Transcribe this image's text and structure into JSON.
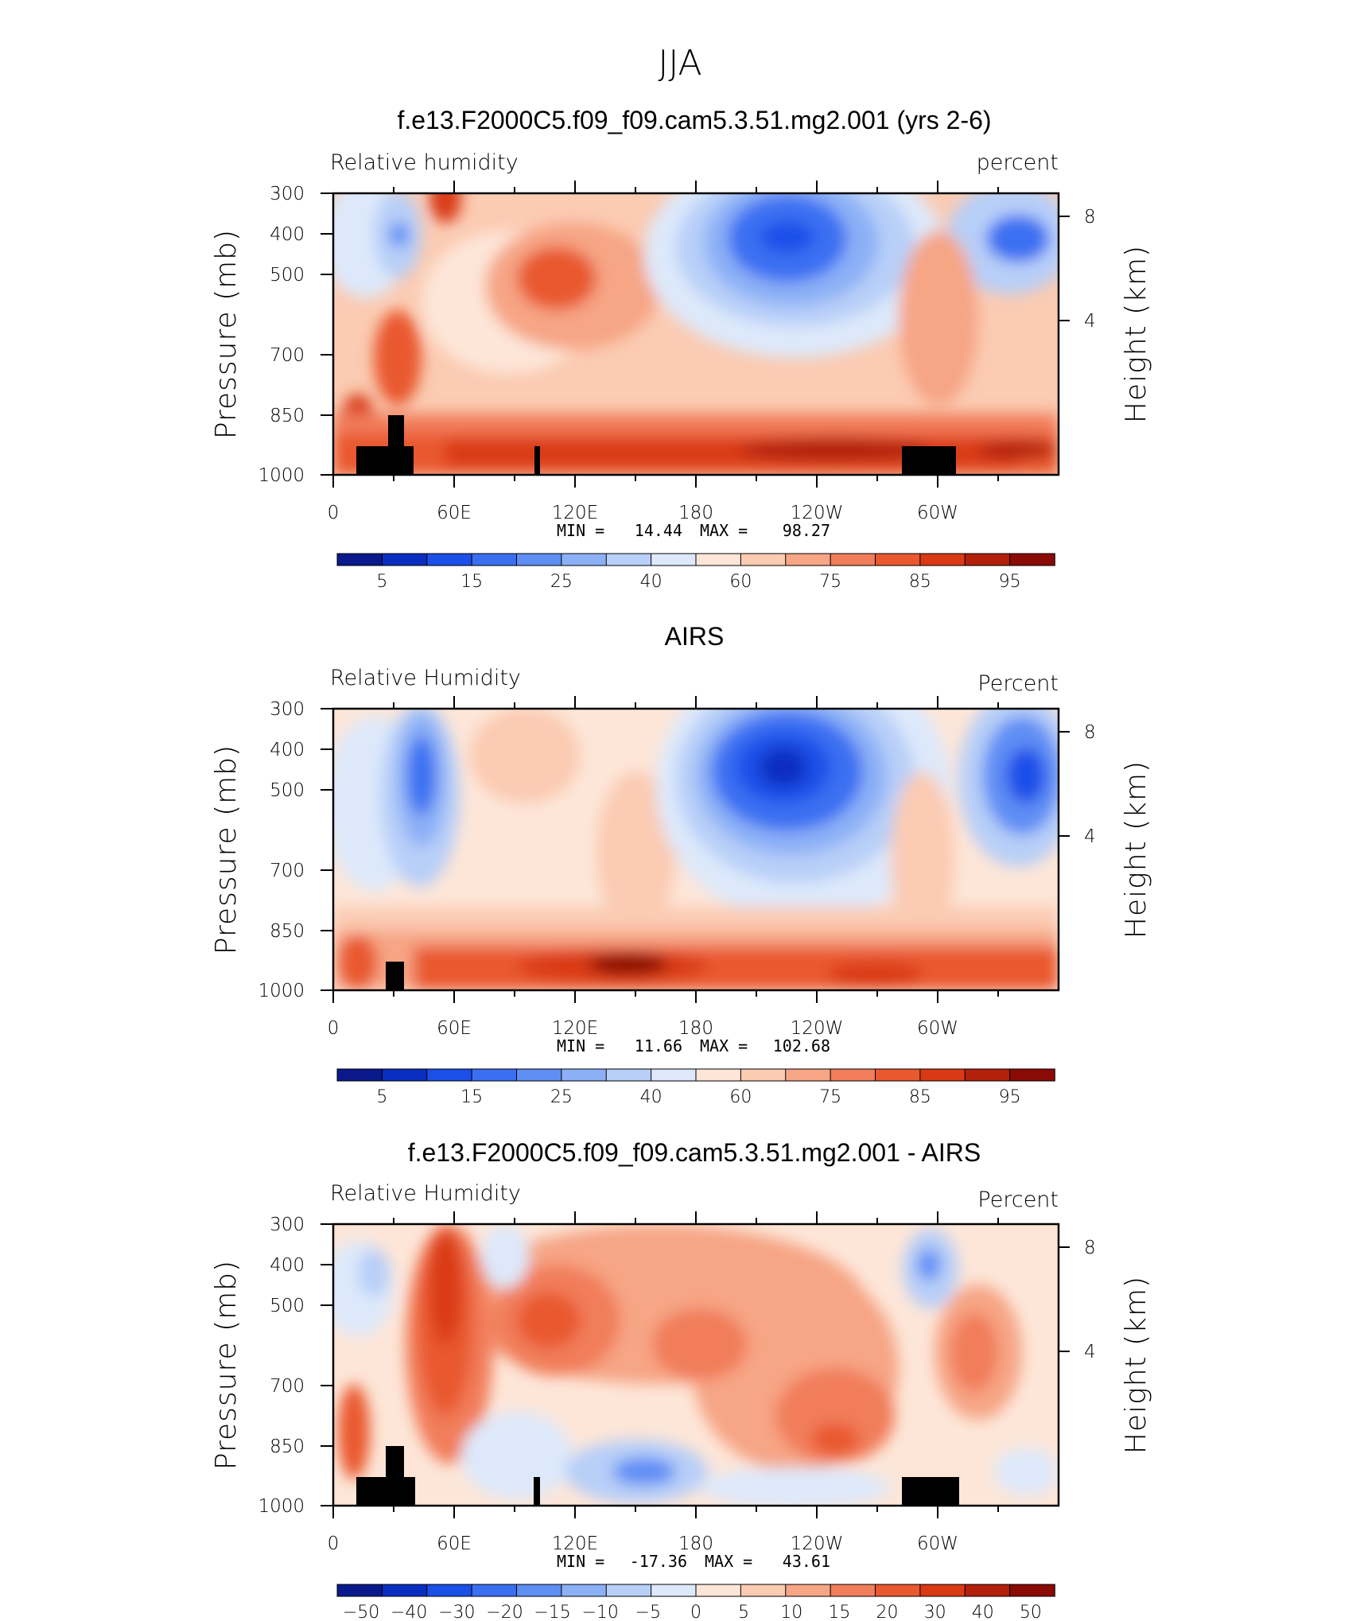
{
  "figure_title": "JJA",
  "colors": {
    "rh_palette": [
      "#0a1a8c",
      "#0a2fc0",
      "#1a4fe8",
      "#3a6ff2",
      "#5f8ef4",
      "#8cb0f6",
      "#b8cff8",
      "#dde9fb",
      "#fde6d8",
      "#fbcbb2",
      "#f6a585",
      "#f17d5a",
      "#e9582f",
      "#d93a14",
      "#b3200c",
      "#8a0a05"
    ],
    "land_mask": "#000000"
  },
  "chart_data": [
    {
      "type": "heatmap",
      "title": "f.e13.F2000C5.f09_f09.cam5.3.51.mg2.001 (yrs 2-6)",
      "left_label": "Relative humidity",
      "right_label": "percent",
      "ylabel": "Pressure (mb)",
      "ylabel_right": "Height (km)",
      "y_ticks": [
        "300",
        "400",
        "500",
        "700",
        "850",
        "1000"
      ],
      "y_right_ticks": [
        "8",
        "4"
      ],
      "x_ticks": [
        "0",
        "60E",
        "120E",
        "180",
        "120W",
        "60W"
      ],
      "min_label": "MIN =",
      "min_value": "14.44",
      "max_label": "MAX =",
      "max_value": "98.27",
      "colorbar_labels": [
        "5",
        "15",
        "25",
        "40",
        "60",
        "75",
        "85",
        "95"
      ]
    },
    {
      "type": "heatmap",
      "title": "AIRS",
      "left_label": "Relative Humidity",
      "right_label": "Percent",
      "ylabel": "Pressure (mb)",
      "ylabel_right": "Height (km)",
      "y_ticks": [
        "300",
        "400",
        "500",
        "700",
        "850",
        "1000"
      ],
      "y_right_ticks": [
        "8",
        "4"
      ],
      "x_ticks": [
        "0",
        "60E",
        "120E",
        "180",
        "120W",
        "60W"
      ],
      "min_label": "MIN =",
      "min_value": "11.66",
      "max_label": "MAX =",
      "max_value": "102.68",
      "colorbar_labels": [
        "5",
        "15",
        "25",
        "40",
        "60",
        "75",
        "85",
        "95"
      ]
    },
    {
      "type": "heatmap",
      "title": "f.e13.F2000C5.f09_f09.cam5.3.51.mg2.001 - AIRS",
      "left_label": "Relative Humidity",
      "right_label": "Percent",
      "ylabel": "Pressure (mb)",
      "ylabel_right": "Height (km)",
      "y_ticks": [
        "300",
        "400",
        "500",
        "700",
        "850",
        "1000"
      ],
      "y_right_ticks": [
        "8",
        "4"
      ],
      "x_ticks": [
        "0",
        "60E",
        "120E",
        "180",
        "120W",
        "60W"
      ],
      "min_label": "MIN =",
      "min_value": "-17.36",
      "max_label": "MAX =",
      "max_value": "43.61",
      "colorbar_labels": [
        "−50",
        "−40",
        "−30",
        "−20",
        "−15",
        "−10",
        "−5",
        "0",
        "5",
        "10",
        "15",
        "20",
        "30",
        "40",
        "50"
      ]
    }
  ]
}
